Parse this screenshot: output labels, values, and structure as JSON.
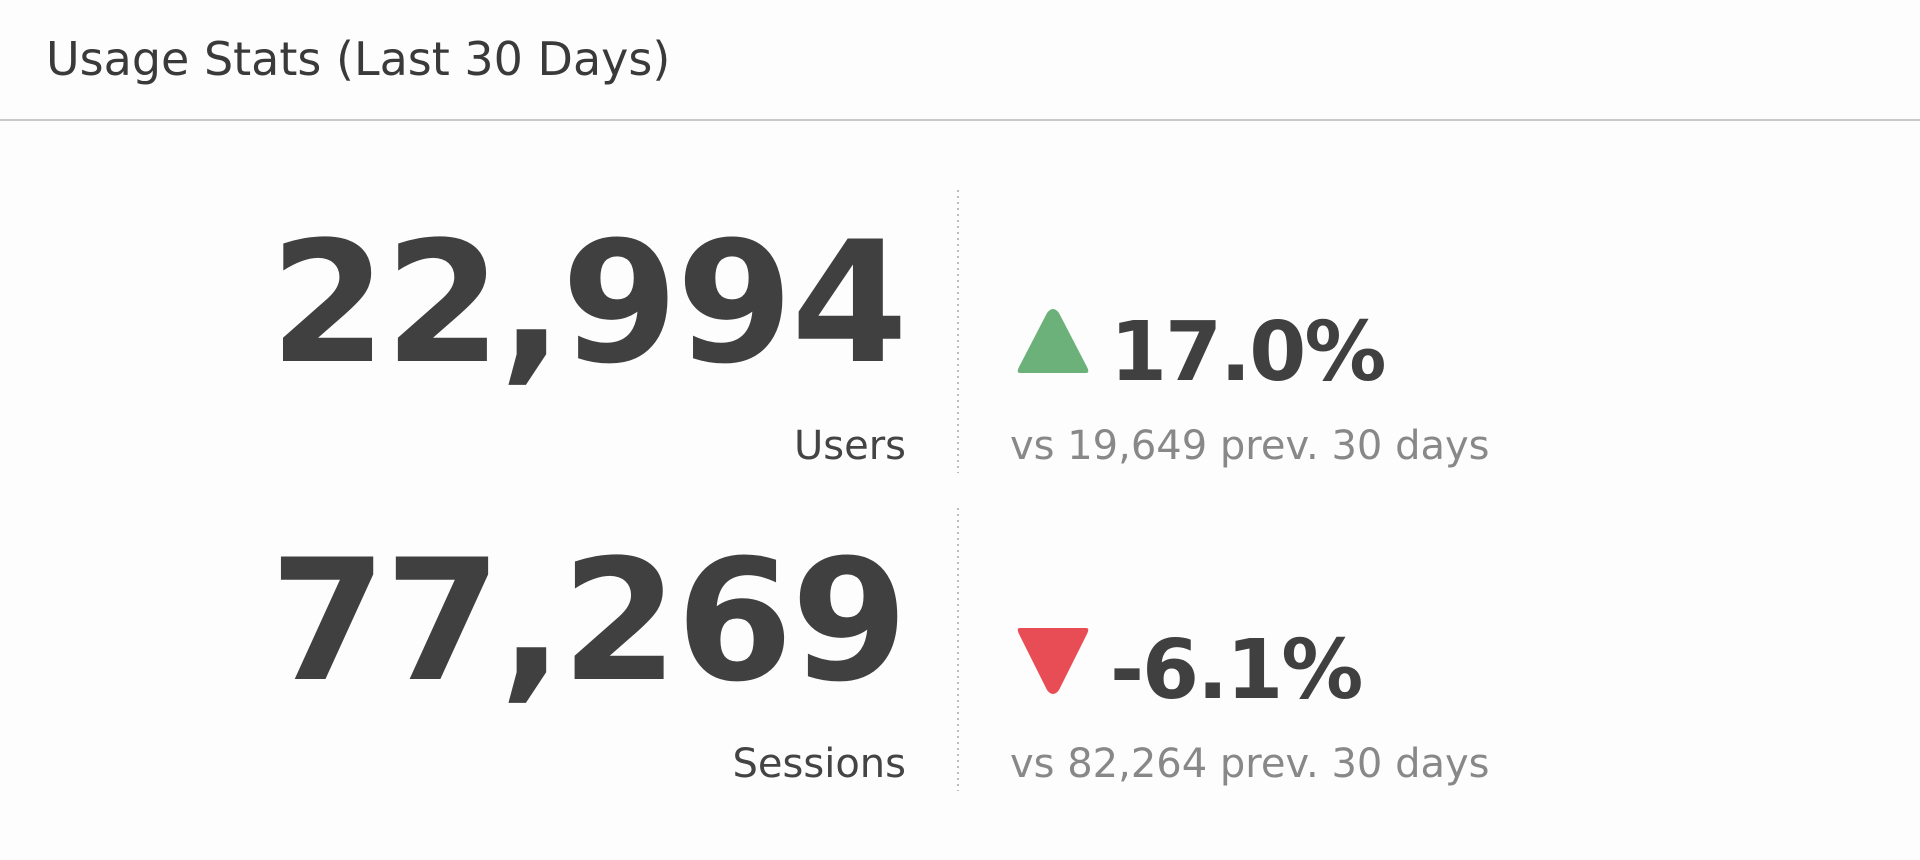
{
  "header": {
    "title": "Usage Stats (Last 30 Days)"
  },
  "metrics": [
    {
      "value": "22,994",
      "label": "Users",
      "change": "17.0%",
      "comparison": "vs 19,649 prev. 30 days"
    },
    {
      "value": "77,269",
      "label": "Sessions",
      "change": "-6.1%",
      "comparison": "vs 82,264 prev. 30 days"
    }
  ]
}
